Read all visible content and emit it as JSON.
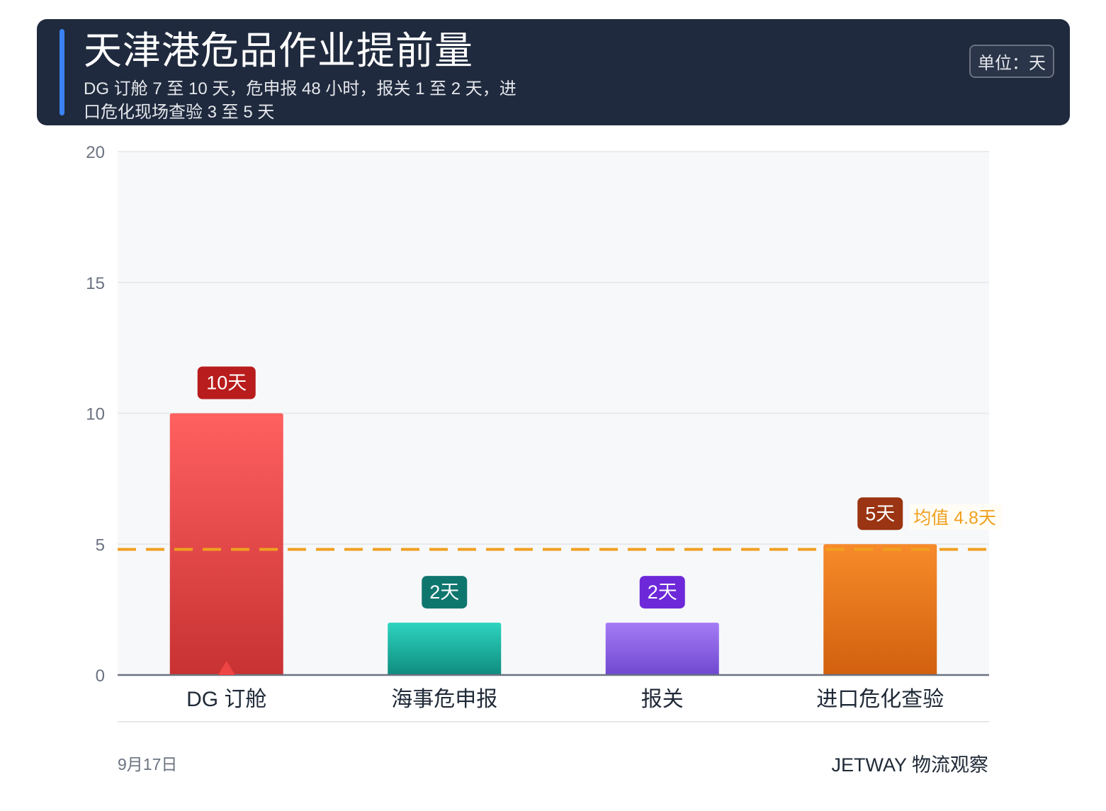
{
  "header": {
    "title": "天津港危品作业提前量",
    "subtitle": "DG 订舱 7 至 10 天，危申报 48 小时，报关 1 至 2 天，进口危化现场查验 3 至 5 天",
    "unit": "单位：天"
  },
  "chart_data": {
    "type": "bar",
    "categories": [
      "DG 订舱",
      "海事危申报",
      "报关",
      "进口危化查验"
    ],
    "values": [
      10,
      2,
      2,
      5
    ],
    "value_labels": [
      "10天",
      "2天",
      "2天",
      "5天"
    ],
    "ylim": [
      0,
      20
    ],
    "yticks": [
      0,
      5,
      10,
      15,
      20
    ],
    "grid": true,
    "reference_line": {
      "value": 4.8,
      "label": "均值 4.8天",
      "color": "#f0a020"
    },
    "highlight_category": "DG 订舱",
    "bar_colors": [
      {
        "top": "#ff6060",
        "bottom": "#c83232",
        "label_bg": "#b91c1c"
      },
      {
        "top": "#2dd4bf",
        "bottom": "#0f8c7e",
        "label_bg": "#0f766e"
      },
      {
        "top": "#a47cf5",
        "bottom": "#7048d0",
        "label_bg": "#6d28d9"
      },
      {
        "top": "#f78b2a",
        "bottom": "#d2600e",
        "label_bg": "#9a3412"
      }
    ]
  },
  "footer": {
    "date": "9月17日",
    "brand": "JETWAY 物流观察"
  }
}
